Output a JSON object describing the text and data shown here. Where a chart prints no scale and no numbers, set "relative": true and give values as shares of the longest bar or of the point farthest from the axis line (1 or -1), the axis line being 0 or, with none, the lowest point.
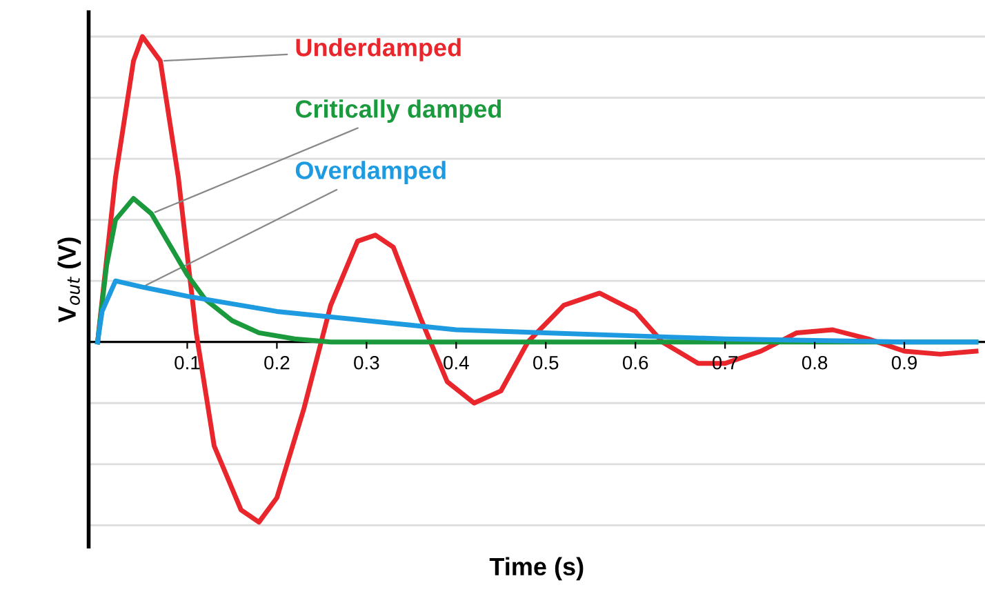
{
  "chart_data": {
    "type": "line",
    "relative": true,
    "xlabel": "Time (s)",
    "ylabel": "V$_{out}$ (V)",
    "xlim": [
      -0.01,
      0.99
    ],
    "xticks": [
      0.1,
      0.2,
      0.3,
      0.4,
      0.5,
      0.6,
      0.7,
      0.8,
      0.9
    ],
    "grid": "y",
    "legend": false,
    "marker": "none",
    "line_style": "solid",
    "series": [
      {
        "name": "Underdamped",
        "color": "#e8262b",
        "x": [
          0,
          0.02,
          0.04,
          0.05,
          0.07,
          0.09,
          0.11,
          0.13,
          0.16,
          0.18,
          0.2,
          0.23,
          0.26,
          0.29,
          0.31,
          0.33,
          0.36,
          0.39,
          0.42,
          0.45,
          0.48,
          0.52,
          0.56,
          0.6,
          0.63,
          0.67,
          0.7,
          0.74,
          0.78,
          0.82,
          0.86,
          0.9,
          0.94,
          0.98
        ],
        "values": [
          0,
          0.54,
          0.92,
          1.0,
          0.92,
          0.54,
          0.03,
          -0.34,
          -0.55,
          -0.59,
          -0.51,
          -0.22,
          0.12,
          0.33,
          0.35,
          0.31,
          0.08,
          -0.13,
          -0.2,
          -0.16,
          0,
          0.12,
          0.16,
          0.1,
          0,
          -0.07,
          -0.07,
          -0.03,
          0.03,
          0.04,
          0.01,
          -0.03,
          -0.04,
          -0.03
        ]
      },
      {
        "name": "Critically damped",
        "color": "#1a9a3c",
        "x": [
          0,
          0.01,
          0.02,
          0.04,
          0.06,
          0.08,
          0.1,
          0.12,
          0.15,
          0.18,
          0.22,
          0.26,
          0.4,
          0.6,
          0.8,
          0.98
        ],
        "values": [
          0,
          0.25,
          0.4,
          0.47,
          0.42,
          0.32,
          0.22,
          0.14,
          0.07,
          0.03,
          0.01,
          0,
          0,
          0,
          0,
          0
        ]
      },
      {
        "name": "Overdamped",
        "color": "#1e9be0",
        "x": [
          0,
          0.005,
          0.02,
          0.05,
          0.1,
          0.2,
          0.3,
          0.4,
          0.5,
          0.6,
          0.7,
          0.8,
          0.9,
          0.98
        ],
        "values": [
          0,
          0.1,
          0.2,
          0.18,
          0.15,
          0.1,
          0.07,
          0.04,
          0.03,
          0.02,
          0.01,
          0.005,
          0,
          0
        ]
      }
    ]
  }
}
